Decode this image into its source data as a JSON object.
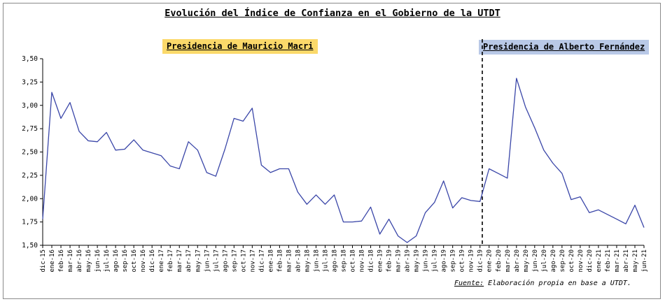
{
  "chart_data": {
    "type": "line",
    "title": "Evolución del Índice de Confianza en el Gobierno de la UTDT",
    "xlabel": "",
    "ylabel": "",
    "ylim": [
      1.5,
      3.5
    ],
    "yticks": [
      "3,50",
      "3,25",
      "3,00",
      "2,75",
      "2,50",
      "2,25",
      "2,00",
      "1,75",
      "1,50"
    ],
    "grid": false,
    "line_color": "#3a46a8",
    "categories": [
      "dic-15",
      "ene-16",
      "feb-16",
      "mar-16",
      "abr-16",
      "may-16",
      "jun-16",
      "jul-16",
      "ago-16",
      "sep-16",
      "oct-16",
      "nov-16",
      "dic-16",
      "ene-17",
      "feb-17",
      "mar-17",
      "abr-17",
      "may-17",
      "jun-17",
      "jul-17",
      "ago-17",
      "sep-17",
      "oct-17",
      "nov-17",
      "dic-17",
      "ene-18",
      "feb-18",
      "mar-18",
      "abr-18",
      "may-18",
      "jun-18",
      "jul-18",
      "ago-18",
      "sep-18",
      "oct-18",
      "nov-18",
      "dic-18",
      "ene-19",
      "feb-19",
      "mar-19",
      "abr-19",
      "may-19",
      "jun-19",
      "jul-19",
      "ago-19",
      "sep-19",
      "oct-19",
      "nov-19",
      "dic-19",
      "ene-20",
      "feb-20",
      "mar-20",
      "abr-20",
      "may-20",
      "jun-20",
      "jul-20",
      "ago-20",
      "sep-20",
      "oct-20",
      "nov-20",
      "dic-20",
      "ene-21",
      "feb-21",
      "mar-21",
      "abr-21",
      "may-21",
      "jun-21"
    ],
    "values": [
      1.78,
      3.14,
      2.86,
      3.03,
      2.72,
      2.62,
      2.61,
      2.71,
      2.52,
      2.53,
      2.63,
      2.52,
      2.49,
      2.46,
      2.35,
      2.32,
      2.61,
      2.52,
      2.28,
      2.24,
      2.53,
      2.86,
      2.83,
      2.97,
      2.36,
      2.28,
      2.32,
      2.32,
      2.07,
      1.94,
      2.04,
      1.94,
      2.04,
      1.75,
      1.75,
      1.76,
      1.91,
      1.62,
      1.78,
      1.6,
      1.53,
      1.6,
      1.85,
      1.96,
      2.19,
      1.9,
      2.01,
      1.98,
      1.97,
      2.32,
      2.27,
      2.22,
      3.29,
      2.98,
      2.76,
      2.52,
      2.38,
      2.27,
      1.99,
      2.02,
      1.85,
      1.88,
      1.83,
      1.78,
      1.73,
      1.93,
      1.69
    ],
    "annotations": {
      "macri": {
        "label": "Presidencia de Mauricio Macri",
        "color": "#fbd96a"
      },
      "fernandez": {
        "label": "Presidencia de Alberto Fernández",
        "color": "#b9c9e7"
      },
      "divider_after_category": "dic-19"
    }
  },
  "source": {
    "label": "Fuente:",
    "text": " Elaboración propia en base a UTDT."
  }
}
